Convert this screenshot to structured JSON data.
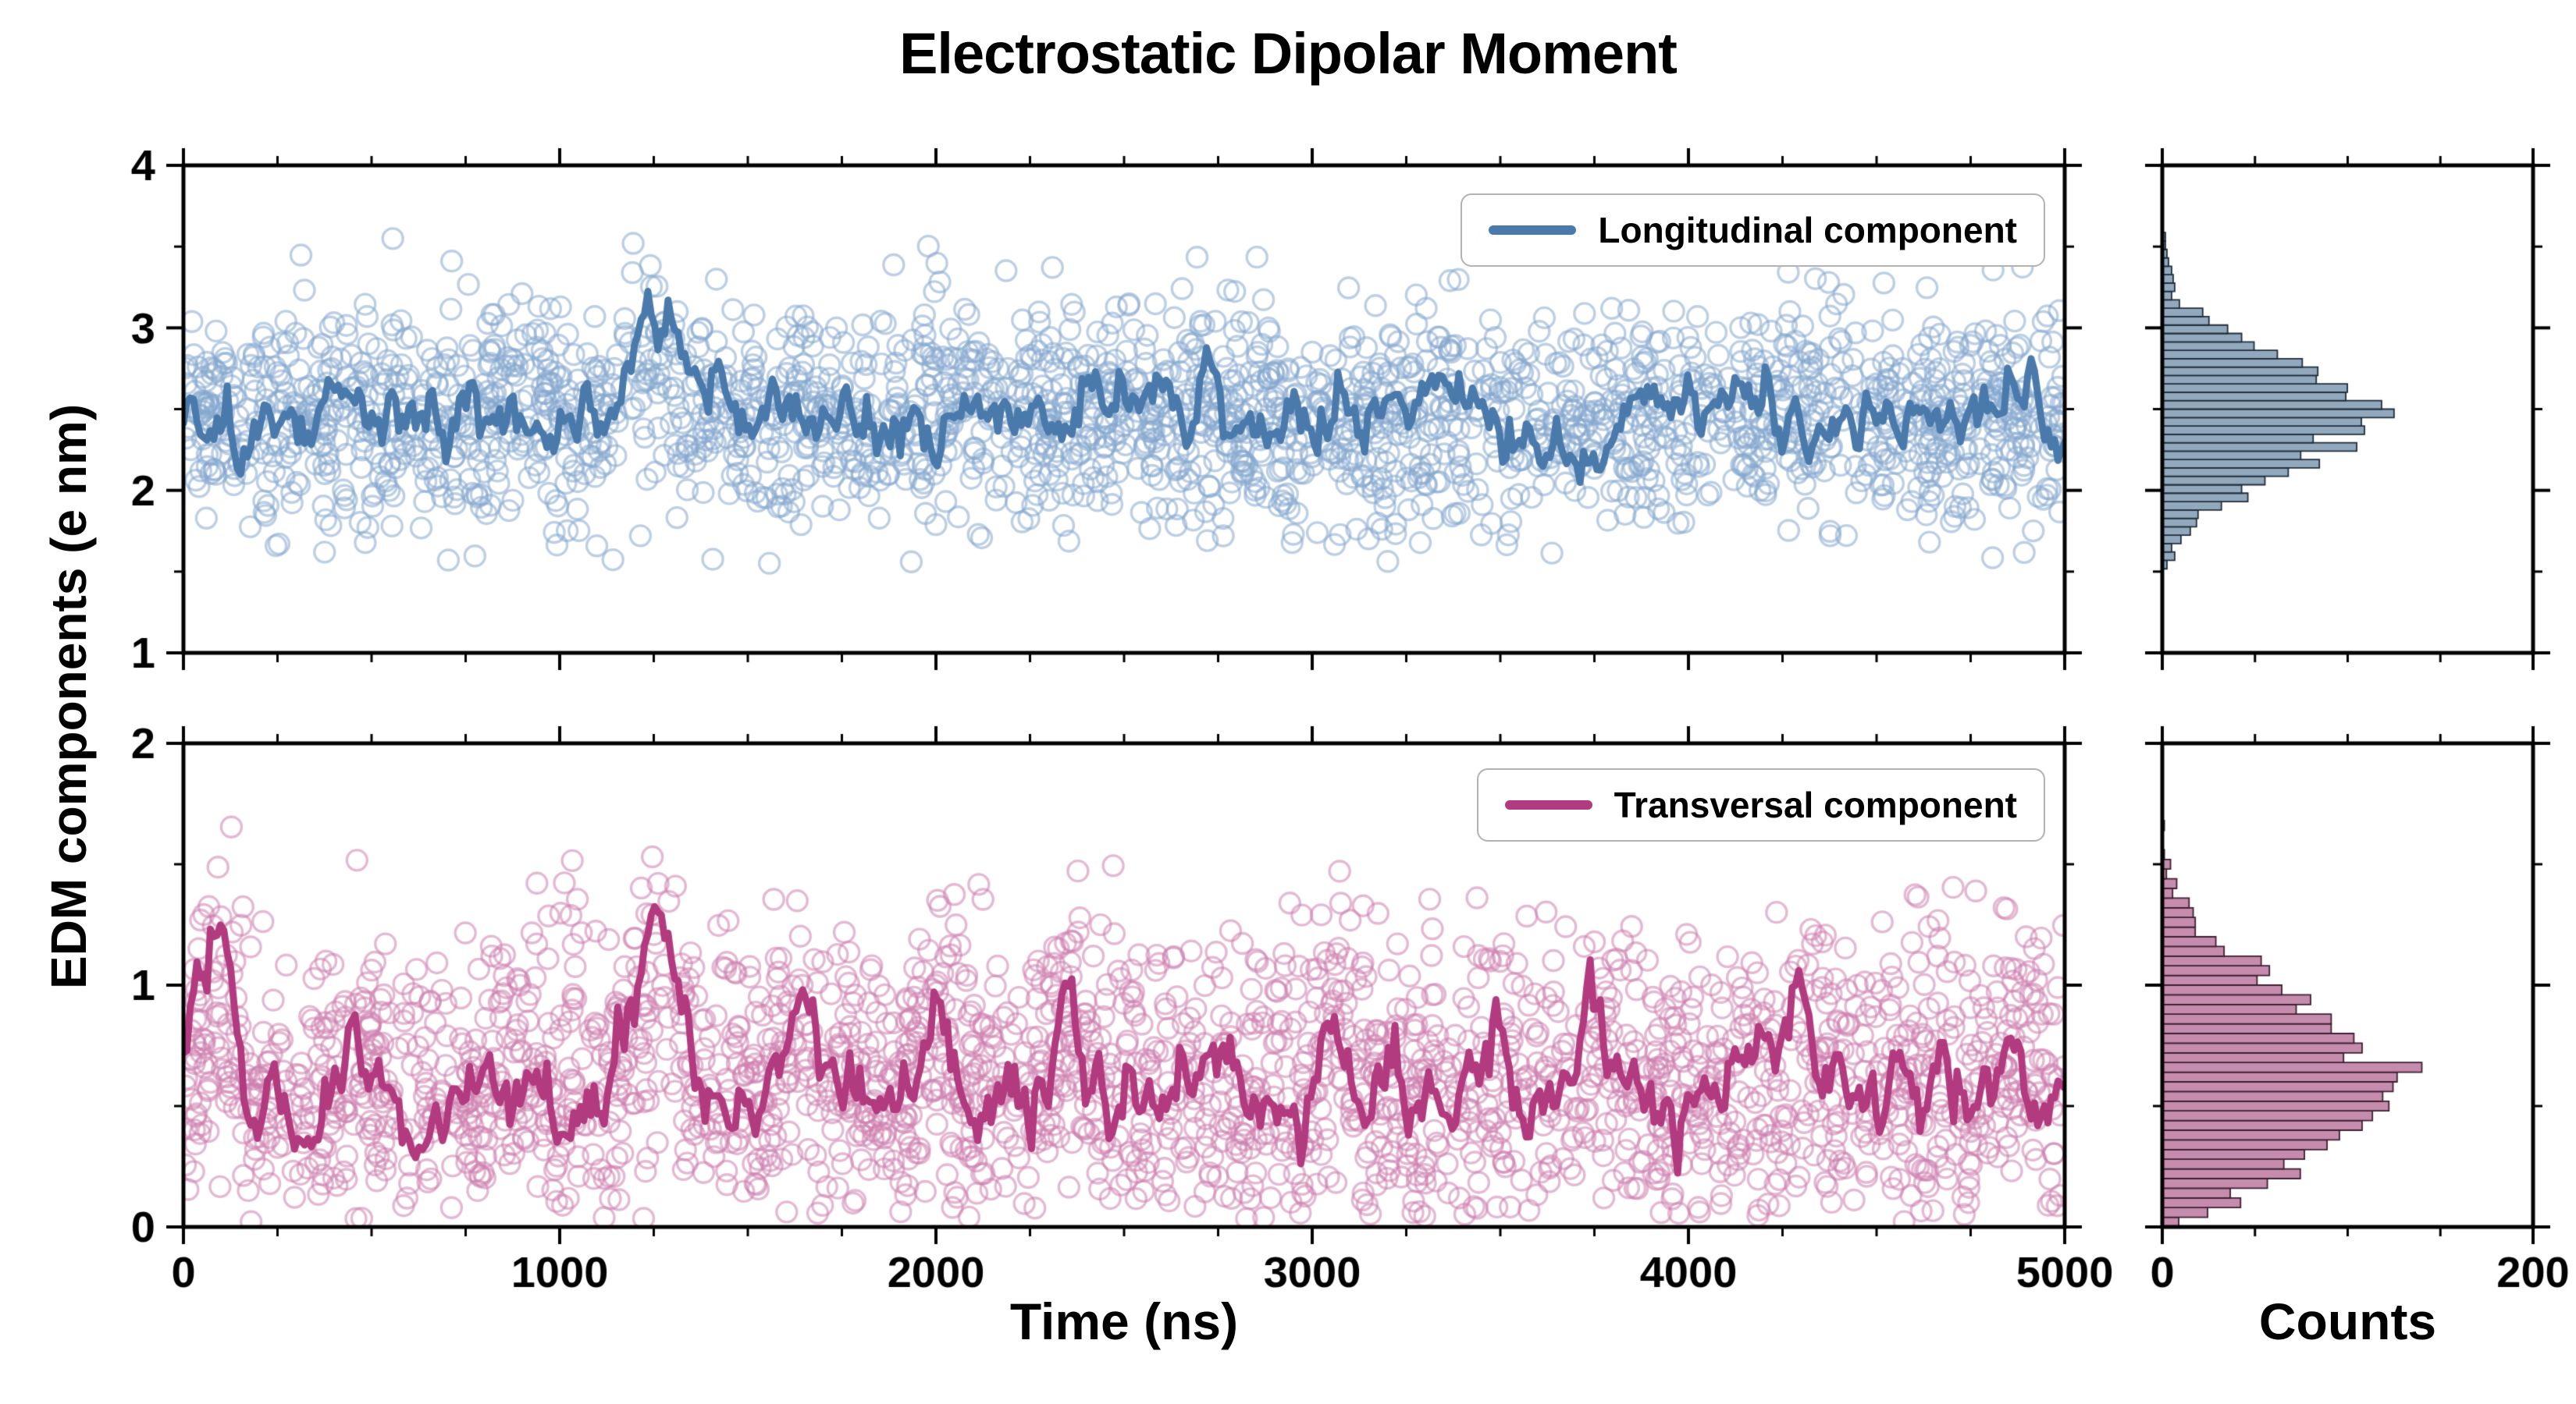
{
  "chart_data": {
    "type": "scatter",
    "title": "Electrostatic Dipolar Moment",
    "xlabel": "Time (ns)",
    "ylabel": "EDM components (e nm)",
    "counts_label": "Counts",
    "xlim": [
      0,
      5000
    ],
    "xticks": [
      0,
      1000,
      2000,
      3000,
      4000,
      5000
    ],
    "xtick_labels": [
      "0",
      "1000",
      "2000",
      "3000",
      "4000",
      "5000"
    ],
    "x_minor_step": 250,
    "hist_xlim": [
      0,
      200
    ],
    "hist_xticks": [
      0,
      200
    ],
    "hist_xtick_labels": [
      "0",
      "200"
    ],
    "hist_x_minor_step": 50,
    "panels": [
      {
        "id": "longitudinal",
        "legend": "Longitudinal component",
        "colors": {
          "line": "#4a7aab",
          "scatter": "#85a8cd",
          "hist_fill": "#92a9bd",
          "hist_edge": "#1f2d3a"
        },
        "ylim": [
          1,
          4
        ],
        "yticks": [
          1,
          2,
          3,
          4
        ],
        "ytick_labels": [
          "1",
          "2",
          "3",
          "4"
        ],
        "y_minor_step": 0.5,
        "scatter": {
          "n": 2200,
          "mean": 2.45,
          "std": 0.34,
          "min": 1.55,
          "max": 3.55
        },
        "line": {
          "mean": 2.45,
          "std": 0.13,
          "peaks": [
            {
              "x": 1250,
              "amp": 0.62,
              "w": 55
            }
          ]
        },
        "hist": {
          "bins": 58,
          "max_count": 125
        }
      },
      {
        "id": "transversal",
        "legend": "Transversal component",
        "colors": {
          "line": "#b23a7f",
          "scatter": "#cd7fae",
          "hist_fill": "#c68cad",
          "hist_edge": "#3c1f30"
        },
        "ylim": [
          0,
          2
        ],
        "yticks": [
          0,
          1,
          2
        ],
        "ytick_labels": [
          "0",
          "1",
          "2"
        ],
        "y_minor_step": 0.5,
        "scatter": {
          "n": 2200,
          "mean": 0.57,
          "std": 0.32,
          "min": 0.02,
          "max": 1.7
        },
        "line": {
          "mean": 0.55,
          "std": 0.11,
          "peaks": [
            {
              "x": 90,
              "amp": 0.68,
              "w": 45
            },
            {
              "x": 1260,
              "amp": 0.73,
              "w": 55
            },
            {
              "x": 1640,
              "amp": 0.33,
              "w": 30
            },
            {
              "x": 2000,
              "amp": 0.42,
              "w": 35
            },
            {
              "x": 2350,
              "amp": 0.4,
              "w": 28
            },
            {
              "x": 3060,
              "amp": 0.28,
              "w": 30
            },
            {
              "x": 3480,
              "amp": 0.25,
              "w": 25
            },
            {
              "x": 3750,
              "amp": 0.33,
              "w": 30
            },
            {
              "x": 4300,
              "amp": 0.27,
              "w": 25
            },
            {
              "x": 4850,
              "amp": 0.22,
              "w": 25
            }
          ]
        },
        "hist": {
          "bins": 50,
          "max_count": 140
        }
      }
    ]
  }
}
